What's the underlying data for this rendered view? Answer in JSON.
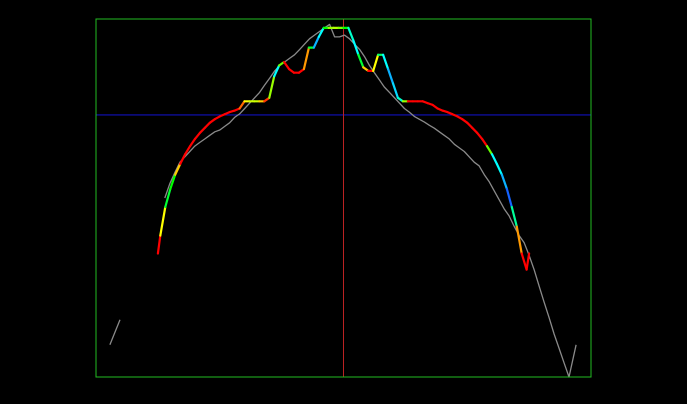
{
  "chart_data": {
    "type": "line",
    "title": "",
    "xlabel": "",
    "ylabel": "",
    "xlim": [
      -1,
      1
    ],
    "ylim": [
      0,
      1
    ],
    "grid": false,
    "legend": "none",
    "colors": {
      "background": "#000000",
      "frame": "#22bb22",
      "horizontal_reference": "#1010bb",
      "vertical_reference": "#bb2222",
      "measured_series": "#8a8a8a",
      "model_low": "#ff0000",
      "model_mid_low": "#ffff00",
      "model_mid": "#00ff00",
      "model_mid_high": "#00ffff",
      "model_high": "#1a3cff"
    },
    "reference_lines": {
      "horizontal_y": 0.732,
      "vertical_x": 0.0
    },
    "series": [
      {
        "role": "measured",
        "color": "#8a8a8a",
        "segments": [
          {
            "x": [
              -0.944,
              -0.903
            ],
            "y": [
              0.09,
              0.16
            ]
          },
          {
            "x": [
              -0.722,
              -0.702,
              -0.682,
              -0.661,
              -0.641,
              -0.621,
              -0.601,
              -0.581,
              -0.56,
              -0.54,
              -0.52,
              -0.5,
              -0.48,
              -0.46,
              -0.44,
              -0.42,
              -0.399,
              -0.379,
              -0.359,
              -0.339,
              -0.319,
              -0.298,
              -0.278,
              -0.258,
              -0.238,
              -0.218,
              -0.198,
              -0.177,
              -0.157,
              -0.137,
              -0.117,
              -0.097,
              -0.077,
              -0.056,
              -0.036,
              -0.016,
              0.004,
              0.024,
              0.044,
              0.065,
              0.085,
              0.105,
              0.125,
              0.145,
              0.165,
              0.186,
              0.206,
              0.226,
              0.246,
              0.266,
              0.286,
              0.306,
              0.327,
              0.347,
              0.367,
              0.387,
              0.407,
              0.427,
              0.448,
              0.468,
              0.488,
              0.508,
              0.528,
              0.548,
              0.569,
              0.589,
              0.609,
              0.629,
              0.649,
              0.669,
              0.69,
              0.71,
              0.73,
              0.75,
              0.77,
              0.79,
              0.81,
              0.831,
              0.851,
              0.871,
              0.891,
              0.911,
              0.94
            ],
            "y": [
              0.5,
              0.54,
              0.57,
              0.6,
              0.615,
              0.63,
              0.645,
              0.655,
              0.665,
              0.675,
              0.685,
              0.69,
              0.7,
              0.71,
              0.725,
              0.735,
              0.75,
              0.765,
              0.78,
              0.795,
              0.815,
              0.835,
              0.855,
              0.87,
              0.88,
              0.89,
              0.9,
              0.915,
              0.93,
              0.945,
              0.955,
              0.965,
              0.975,
              0.985,
              0.95,
              0.95,
              0.955,
              0.945,
              0.93,
              0.915,
              0.895,
              0.87,
              0.85,
              0.83,
              0.81,
              0.795,
              0.78,
              0.765,
              0.75,
              0.74,
              0.728,
              0.72,
              0.712,
              0.703,
              0.695,
              0.685,
              0.675,
              0.665,
              0.65,
              0.64,
              0.63,
              0.615,
              0.6,
              0.59,
              0.565,
              0.545,
              0.52,
              0.495,
              0.47,
              0.45,
              0.42,
              0.395,
              0.375,
              0.34,
              0.3,
              0.255,
              0.21,
              0.165,
              0.12,
              0.08,
              0.04,
              0.0,
              0.09
            ]
          }
        ]
      },
      {
        "role": "model",
        "color_by": "gradient",
        "x": [
          -0.75,
          -0.74,
          -0.72,
          -0.7,
          -0.68,
          -0.66,
          -0.64,
          -0.62,
          -0.6,
          -0.58,
          -0.56,
          -0.54,
          -0.52,
          -0.5,
          -0.48,
          -0.46,
          -0.44,
          -0.42,
          -0.4,
          -0.38,
          -0.36,
          -0.34,
          -0.32,
          -0.3,
          -0.28,
          -0.26,
          -0.24,
          -0.22,
          -0.2,
          -0.18,
          -0.16,
          -0.14,
          -0.12,
          -0.1,
          -0.08,
          -0.06,
          -0.04,
          -0.02,
          0.0,
          0.02,
          0.04,
          0.06,
          0.08,
          0.1,
          0.12,
          0.14,
          0.16,
          0.18,
          0.2,
          0.22,
          0.24,
          0.26,
          0.28,
          0.3,
          0.32,
          0.34,
          0.36,
          0.38,
          0.4,
          0.42,
          0.44,
          0.46,
          0.48,
          0.5,
          0.52,
          0.54,
          0.56,
          0.58,
          0.6,
          0.62,
          0.64,
          0.66,
          0.68,
          0.7,
          0.72,
          0.74,
          0.75
        ],
        "y": [
          0.345,
          0.395,
          0.475,
          0.525,
          0.565,
          0.595,
          0.622,
          0.645,
          0.665,
          0.682,
          0.696,
          0.71,
          0.72,
          0.728,
          0.734,
          0.74,
          0.744,
          0.75,
          0.77,
          0.77,
          0.77,
          0.77,
          0.77,
          0.78,
          0.84,
          0.87,
          0.88,
          0.86,
          0.85,
          0.85,
          0.86,
          0.92,
          0.92,
          0.95,
          0.975,
          0.975,
          0.975,
          0.975,
          0.975,
          0.975,
          0.94,
          0.9,
          0.865,
          0.855,
          0.855,
          0.9,
          0.9,
          0.86,
          0.82,
          0.78,
          0.77,
          0.77,
          0.77,
          0.77,
          0.77,
          0.765,
          0.76,
          0.75,
          0.744,
          0.74,
          0.734,
          0.728,
          0.72,
          0.71,
          0.696,
          0.682,
          0.665,
          0.645,
          0.622,
          0.595,
          0.565,
          0.525,
          0.475,
          0.42,
          0.345,
          0.3,
          0.345
        ],
        "color_level": [
          0,
          0,
          0.5,
          0.6,
          0.4,
          0,
          0,
          0,
          0,
          0,
          0,
          0,
          0,
          0,
          0,
          0,
          0,
          0,
          0.2,
          0.3,
          0.3,
          0.3,
          0.1,
          0,
          0.7,
          0.8,
          0,
          0,
          0,
          0,
          0,
          0.3,
          0.8,
          0.9,
          0.6,
          0.4,
          0.3,
          0.35,
          0.4,
          0.6,
          0.8,
          0.7,
          0.4,
          0,
          0,
          0.5,
          0.7,
          0.8,
          0.9,
          0.7,
          0.7,
          0,
          0,
          0,
          0,
          0,
          0,
          0,
          0,
          0,
          0,
          0,
          0,
          0,
          0,
          0,
          0,
          0,
          0.8,
          0.7,
          0.8,
          0.9,
          1,
          0.3,
          0,
          0,
          0
        ]
      }
    ]
  }
}
